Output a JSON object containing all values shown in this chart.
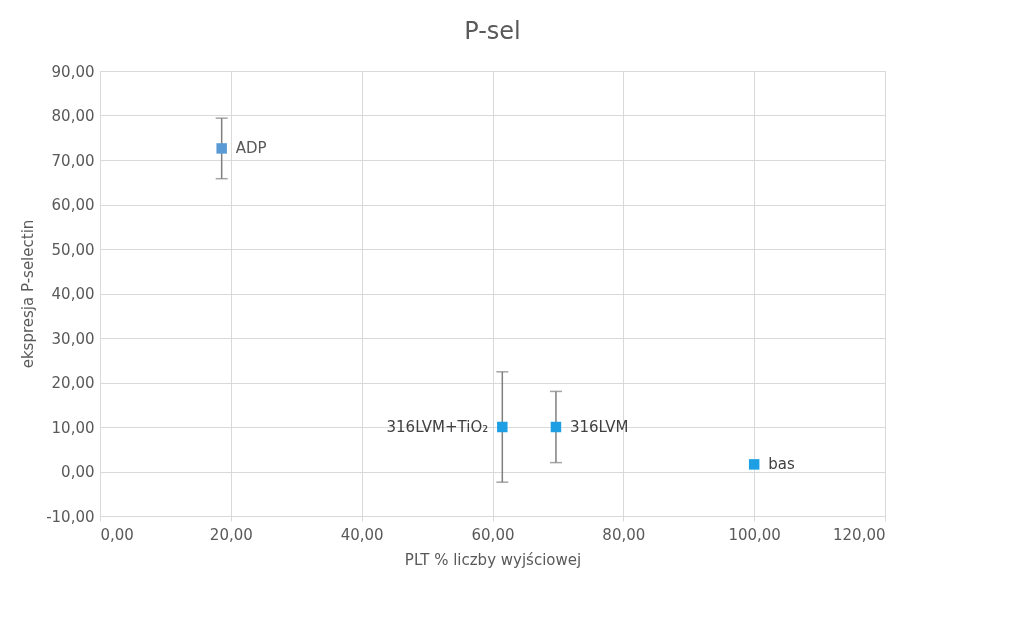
{
  "chart_data": {
    "type": "scatter",
    "title": "P-sel",
    "xlabel": "PLT % liczby wyjściowej",
    "ylabel": "ekspresja P-selectin",
    "x": [
      18.6,
      61.5,
      69.7,
      100
    ],
    "values": [
      72.6,
      10,
      10,
      1.6
    ],
    "errors": [
      6.8,
      12.4,
      8,
      null
    ],
    "colors": [
      "#5b9bd5",
      "#1e9fe3",
      "#1e9fe3",
      "#1e9fe3"
    ],
    "marker": "square",
    "annotations": [
      {
        "text": "ADP",
        "x": 18.6,
        "y": 72.6
      },
      {
        "text": "316LVM+TiO₂",
        "x": 61.5,
        "y": 10
      },
      {
        "text": "316LVM",
        "x": 69.7,
        "y": 10
      },
      {
        "text": "bas",
        "x": 100,
        "y": 1.6
      }
    ],
    "xlim": [
      0,
      120
    ],
    "xticks": [
      {
        "value": 0,
        "label": "0,00"
      },
      {
        "value": 20,
        "label": "20,00"
      },
      {
        "value": 40,
        "label": "40,00"
      },
      {
        "value": 60,
        "label": "60,00"
      },
      {
        "value": 80,
        "label": "80,00"
      },
      {
        "value": 100,
        "label": "100,00"
      },
      {
        "value": 120,
        "label": "120,00"
      }
    ],
    "ylim": [
      -10,
      90
    ],
    "yticks": [
      {
        "value": -10,
        "label": "-10,00"
      },
      {
        "value": 0,
        "label": "0,00"
      },
      {
        "value": 10,
        "label": "10,00"
      },
      {
        "value": 20,
        "label": "20,00"
      },
      {
        "value": 30,
        "label": "30,00"
      },
      {
        "value": 40,
        "label": "40,00"
      },
      {
        "value": 50,
        "label": "50,00"
      },
      {
        "value": 60,
        "label": "60,00"
      },
      {
        "value": 70,
        "label": "70,00"
      },
      {
        "value": 80,
        "label": "80,00"
      },
      {
        "value": 90,
        "label": "90,00"
      }
    ],
    "grid": true
  }
}
